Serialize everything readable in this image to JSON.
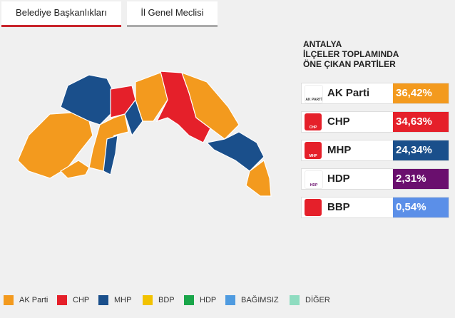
{
  "tabs": [
    "Belediye Başkanlıkları",
    "İl Genel Meclisi"
  ],
  "panel": {
    "title_lines": [
      "ANTALYA",
      "İLÇELER TOPLAMINDA",
      "ÖNE ÇIKAN PARTİLER"
    ],
    "parties": [
      {
        "name": "AK Parti",
        "result": "36,42%",
        "logo_text": "AK PARTİ"
      },
      {
        "name": "CHP",
        "result": "34,63%",
        "logo_text": "CHP"
      },
      {
        "name": "MHP",
        "result": "24,34%",
        "logo_text": "MHP"
      },
      {
        "name": "HDP",
        "result": "2,31%",
        "logo_text": "HDP"
      },
      {
        "name": "BBP",
        "result": "0,54%",
        "logo_text": ""
      }
    ]
  },
  "legend": [
    "AK Parti",
    "CHP",
    "MHP",
    "BDP",
    "HDP",
    "BAĞIMSIZ",
    "DİĞER"
  ]
}
